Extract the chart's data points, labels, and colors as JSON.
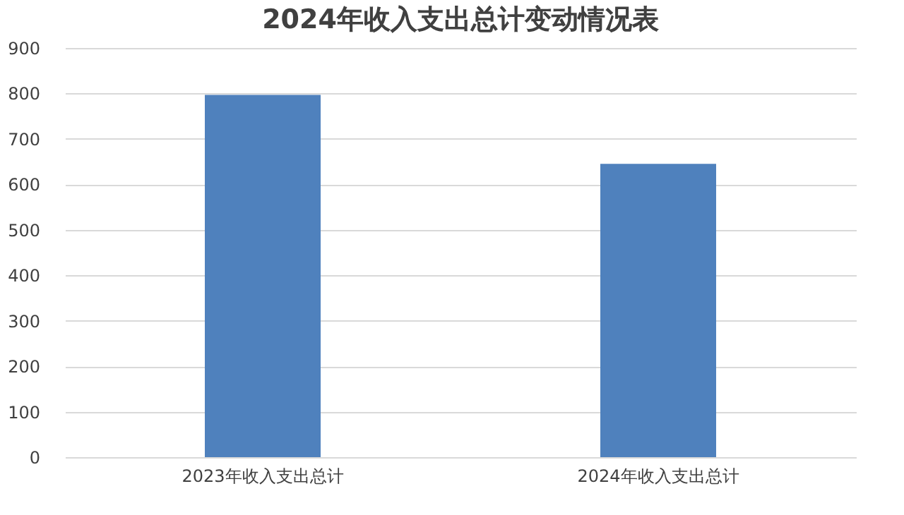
{
  "chart_data": {
    "type": "bar",
    "title": "2024年收入支出总计变动情况表",
    "categories": [
      "2023年收入支出总计",
      "2024年收入支出总计"
    ],
    "values": [
      797,
      645
    ],
    "color": "#4f81bd",
    "ylim": [
      0,
      900
    ],
    "yticks": [
      0,
      100,
      200,
      300,
      400,
      500,
      600,
      700,
      800,
      900
    ],
    "grid": "y"
  }
}
